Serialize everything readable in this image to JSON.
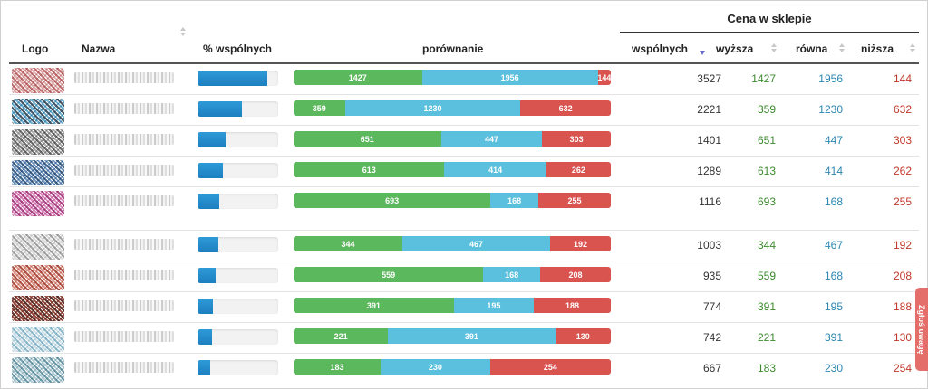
{
  "header": {
    "group_label": "Cena w sklepie",
    "columns": {
      "logo": "Logo",
      "name": "Nazwa",
      "pct": "% wspólnych",
      "compare": "porównanie",
      "common": "wspólnych",
      "higher": "wyższa",
      "equal": "równa",
      "lower": "niższa"
    }
  },
  "side_tab": {
    "label": "Zgłoś uwagę"
  },
  "colors": {
    "higher": "#5cb85c",
    "equal": "#5bc0de",
    "lower": "#d9534f",
    "pct_bar": "#2a92d3"
  },
  "rows": [
    {
      "logo_colors": [
        "#b85a5a",
        "#d9a0a0"
      ],
      "pct_fraction": 0.87,
      "common": "3527",
      "higher": "1427",
      "equal": "1956",
      "lower": "144"
    },
    {
      "logo_colors": [
        "#2c3e50",
        "#4fa3c8"
      ],
      "pct_fraction": 0.55,
      "common": "2221",
      "higher": "359",
      "equal": "1230",
      "lower": "632"
    },
    {
      "logo_colors": [
        "#555555",
        "#9a9a9a"
      ],
      "pct_fraction": 0.35,
      "common": "1401",
      "higher": "651",
      "equal": "447",
      "lower": "303"
    },
    {
      "logo_colors": [
        "#234e7a",
        "#5a88b8"
      ],
      "pct_fraction": 0.32,
      "common": "1289",
      "higher": "613",
      "equal": "414",
      "lower": "262"
    },
    {
      "logo_colors": [
        "#a02a78",
        "#d779b5"
      ],
      "pct_fraction": 0.27,
      "common": "1116",
      "higher": "693",
      "equal": "168",
      "lower": "255"
    },
    {
      "logo_colors": [
        "#9a9a9a",
        "#d6d6d6"
      ],
      "pct_fraction": 0.26,
      "common": "1003",
      "higher": "344",
      "equal": "467",
      "lower": "192"
    },
    {
      "logo_colors": [
        "#a63a2a",
        "#d98a7a"
      ],
      "pct_fraction": 0.22,
      "common": "935",
      "higher": "559",
      "equal": "168",
      "lower": "208"
    },
    {
      "logo_colors": [
        "#4a1208",
        "#8a2a18"
      ],
      "pct_fraction": 0.19,
      "common": "774",
      "higher": "391",
      "equal": "195",
      "lower": "188"
    },
    {
      "logo_colors": [
        "#7fb3c8",
        "#c8dde6"
      ],
      "pct_fraction": 0.18,
      "common": "742",
      "higher": "221",
      "equal": "391",
      "lower": "130"
    },
    {
      "logo_colors": [
        "#5a8fa0",
        "#a9c7d0"
      ],
      "pct_fraction": 0.16,
      "common": "667",
      "higher": "183",
      "equal": "230",
      "lower": "254"
    }
  ]
}
